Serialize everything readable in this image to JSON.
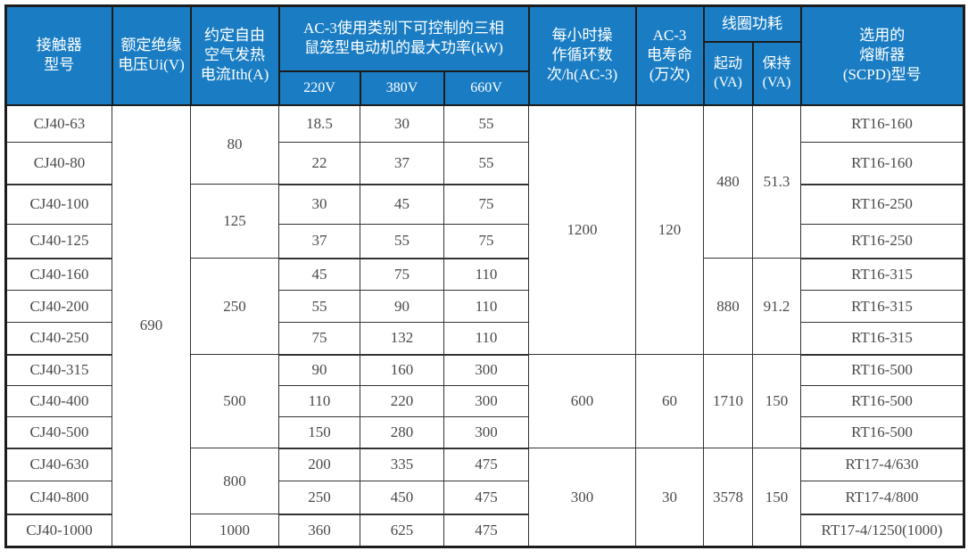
{
  "colors": {
    "header_background": "#1a7dc4",
    "header_text": "#ffffff",
    "body_text": "#4a4a4a",
    "border": "#1c1c1c"
  },
  "table": {
    "header": {
      "model": [
        "接触器",
        "型号"
      ],
      "insulation": [
        "额定绝缘",
        "电压Ui(V)"
      ],
      "ith": [
        "约定自由",
        "空气发热",
        "电流Ith(A)"
      ],
      "power_group": [
        "AC-3使用类别下可控制的三相",
        "鼠笼型电动机的最大功率(kW)"
      ],
      "power_cols": [
        "220V",
        "380V",
        "660V"
      ],
      "cycles": [
        "每小时操",
        "作循环数",
        "次/h(AC-3)"
      ],
      "life": [
        "AC-3",
        "电寿命",
        "(万次)"
      ],
      "coil_group": "线圈功耗",
      "coil_start": [
        "起动",
        "(VA)"
      ],
      "coil_hold": [
        "保持",
        "(VA)"
      ],
      "fuse": [
        "选用的",
        "熔断器",
        "(SCPD)型号"
      ]
    },
    "rows": [
      {
        "model": "CJ40-63",
        "cells": [
          [
            "690",
            13
          ],
          [
            "80",
            2
          ],
          [
            "18.5"
          ],
          [
            "30"
          ],
          [
            "55"
          ],
          [
            "1200",
            7
          ],
          [
            "120",
            7
          ],
          [
            "480",
            4
          ],
          [
            "51.3",
            4
          ],
          [
            "RT16-160"
          ]
        ]
      },
      {
        "model": "CJ40-80",
        "cells": [
          [
            "22"
          ],
          [
            "37"
          ],
          [
            "55"
          ],
          [
            "RT16-160"
          ]
        ],
        "group_end": true
      },
      {
        "model": "CJ40-100",
        "cells": [
          [
            "125",
            2
          ],
          [
            "30"
          ],
          [
            "45"
          ],
          [
            "75"
          ],
          [
            "RT16-250"
          ]
        ]
      },
      {
        "model": "CJ40-125",
        "cells": [
          [
            "37"
          ],
          [
            "55"
          ],
          [
            "75"
          ],
          [
            "RT16-250"
          ]
        ],
        "group_end": true
      },
      {
        "model": "CJ40-160",
        "cells": [
          [
            "250",
            3
          ],
          [
            "45"
          ],
          [
            "75"
          ],
          [
            "110"
          ],
          [
            "880",
            3
          ],
          [
            "91.2",
            3
          ],
          [
            "RT16-315"
          ]
        ]
      },
      {
        "model": "CJ40-200",
        "cells": [
          [
            "55"
          ],
          [
            "90"
          ],
          [
            "110"
          ],
          [
            "RT16-315"
          ]
        ]
      },
      {
        "model": "CJ40-250",
        "cells": [
          [
            "75"
          ],
          [
            "132"
          ],
          [
            "110"
          ],
          [
            "RT16-315"
          ]
        ],
        "group_end": true
      },
      {
        "model": "CJ40-315",
        "cells": [
          [
            "500",
            3
          ],
          [
            "90"
          ],
          [
            "160"
          ],
          [
            "300"
          ],
          [
            "600",
            3
          ],
          [
            "60",
            3
          ],
          [
            "1710",
            3
          ],
          [
            "150",
            3
          ],
          [
            "RT16-500"
          ]
        ]
      },
      {
        "model": "CJ40-400",
        "cells": [
          [
            "110"
          ],
          [
            "220"
          ],
          [
            "300"
          ],
          [
            "RT16-500"
          ]
        ]
      },
      {
        "model": "CJ40-500",
        "cells": [
          [
            "150"
          ],
          [
            "280"
          ],
          [
            "300"
          ],
          [
            "RT16-500"
          ]
        ],
        "group_end": true
      },
      {
        "model": "CJ40-630",
        "cells": [
          [
            "800",
            2
          ],
          [
            "200"
          ],
          [
            "335"
          ],
          [
            "475"
          ],
          [
            "300",
            3
          ],
          [
            "30",
            3
          ],
          [
            "3578",
            3
          ],
          [
            "150",
            3
          ],
          [
            "RT17-4/630"
          ]
        ]
      },
      {
        "model": "CJ40-800",
        "cells": [
          [
            "250"
          ],
          [
            "450"
          ],
          [
            "475"
          ],
          [
            "RT17-4/800"
          ]
        ],
        "group_end": true
      },
      {
        "model": "CJ40-1000",
        "cells": [
          [
            "1000"
          ],
          [
            "360"
          ],
          [
            "625"
          ],
          [
            "475"
          ],
          [
            "RT17-4/1250(1000)"
          ]
        ]
      }
    ]
  }
}
